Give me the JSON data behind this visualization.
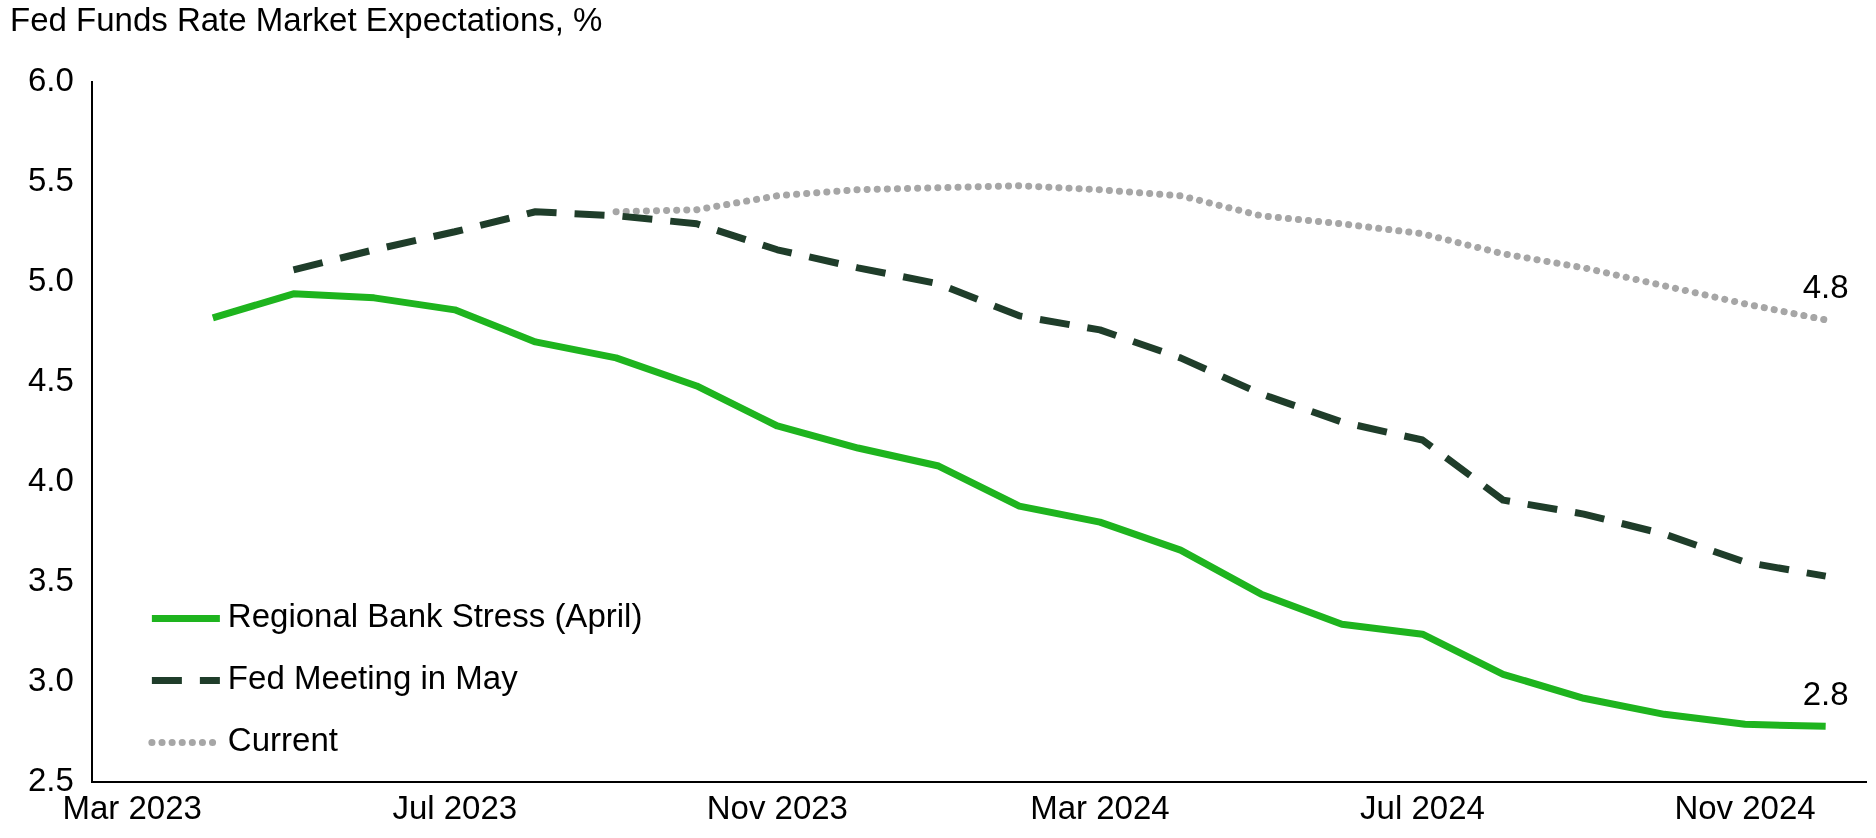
{
  "chart_data": {
    "type": "line",
    "title": "Fed Funds Rate Market Expectations, %",
    "categories": [
      "Mar 2023",
      null,
      null,
      null,
      "Jul 2023",
      null,
      null,
      null,
      "Nov 2023",
      null,
      null,
      null,
      "Mar 2024",
      null,
      null,
      null,
      "Jul 2024",
      null,
      null,
      null,
      "Nov 2024",
      null
    ],
    "series": [
      {
        "name": "Regional Bank Stress (April)",
        "color": "#1eb41e",
        "line_style": "solid",
        "values": [
          null,
          4.82,
          4.94,
          4.92,
          4.86,
          4.7,
          4.62,
          4.48,
          4.28,
          4.17,
          4.08,
          3.88,
          3.8,
          3.66,
          3.44,
          3.29,
          3.24,
          3.04,
          2.92,
          2.84,
          2.79,
          2.78
        ],
        "value_labels": [
          null,
          null,
          null,
          null,
          null,
          null,
          null,
          null,
          null,
          null,
          null,
          null,
          null,
          null,
          null,
          null,
          null,
          null,
          null,
          null,
          null,
          "2.8"
        ]
      },
      {
        "name": "Fed Meeting in May",
        "color": "#1f3d2a",
        "line_style": "dashed",
        "values": [
          null,
          null,
          5.06,
          5.16,
          5.25,
          5.35,
          5.33,
          5.29,
          5.16,
          5.07,
          4.99,
          4.83,
          4.76,
          4.62,
          4.44,
          4.3,
          4.21,
          3.91,
          3.84,
          3.74,
          3.6,
          3.53
        ]
      },
      {
        "name": "Current",
        "color": "#a6a6a6",
        "line_style": "dotted",
        "values": [
          null,
          null,
          null,
          null,
          null,
          null,
          5.35,
          5.36,
          5.43,
          5.46,
          5.47,
          5.48,
          5.46,
          5.43,
          5.33,
          5.29,
          5.24,
          5.14,
          5.07,
          4.98,
          4.89,
          4.81
        ],
        "value_labels": [
          null,
          null,
          null,
          null,
          null,
          null,
          null,
          null,
          null,
          null,
          null,
          null,
          null,
          null,
          null,
          null,
          null,
          null,
          null,
          null,
          null,
          "4.8"
        ]
      }
    ],
    "ylim": [
      2.5,
      6.0
    ],
    "yticks": [
      2.5,
      {
        "value": 3,
        "label": "3.0"
      },
      3.5,
      {
        "value": 4,
        "label": "4.0"
      },
      4.5,
      {
        "value": 5,
        "label": "5.0"
      },
      5.5,
      {
        "value": 6,
        "label": "6.0"
      }
    ],
    "grid": false,
    "legend": "bottom left",
    "marker": "none"
  }
}
